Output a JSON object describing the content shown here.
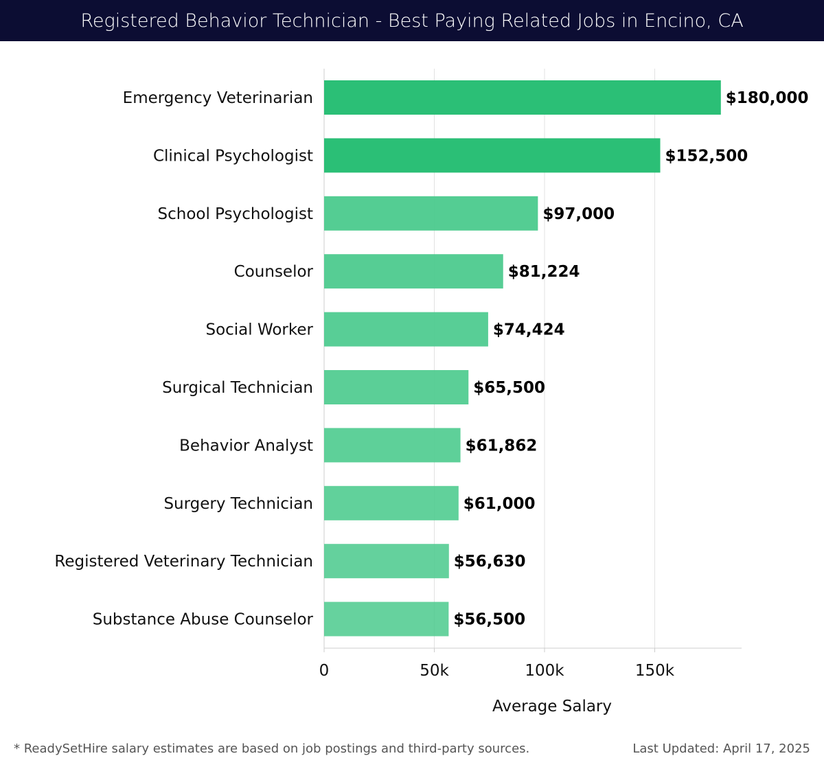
{
  "header": {
    "title": "Registered Behavior Technician - Best Paying Related Jobs in Encino, CA"
  },
  "chart_data": {
    "type": "bar",
    "orientation": "horizontal",
    "title": "Registered Behavior Technician - Best Paying Related Jobs in Encino, CA",
    "categories": [
      "Emergency Veterinarian",
      "Clinical Psychologist",
      "School Psychologist",
      "Counselor",
      "Social Worker",
      "Surgical Technician",
      "Behavior Analyst",
      "Surgery Technician",
      "Registered Veterinary Technician",
      "Substance Abuse Counselor"
    ],
    "values": [
      180000,
      152500,
      97000,
      81224,
      74424,
      65500,
      61862,
      61000,
      56630,
      56500
    ],
    "value_labels": [
      "$180,000",
      "$152,500",
      "$97,000",
      "$81,224",
      "$74,424",
      "$65,500",
      "$61,862",
      "$61,000",
      "$56,630",
      "$56,500"
    ],
    "xlabel": "Average Salary",
    "ylabel": "",
    "xlim": [
      0,
      190000
    ],
    "ticks": [
      0,
      50000,
      100000,
      150000
    ],
    "tick_labels": [
      "0",
      "50k",
      "100k",
      "150k"
    ],
    "grid": true,
    "colors": {
      "top": "#2bbf76",
      "rest": "#4ecb8f",
      "grid": "#e2e2e2",
      "axis": "#cccccc"
    }
  },
  "footer": {
    "note": "* ReadySetHire salary estimates are based on job postings and third-party sources.",
    "updated": "Last Updated: April 17, 2025"
  }
}
